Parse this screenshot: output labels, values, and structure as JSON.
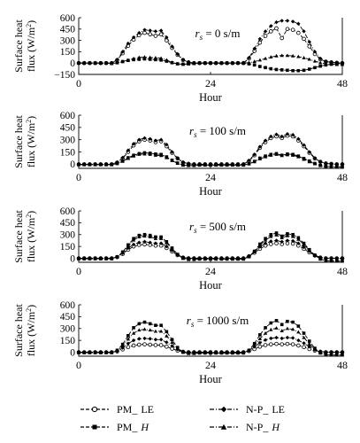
{
  "chart_data": [
    {
      "type": "line",
      "annotation_prefix": "r",
      "annotation_sub": "s",
      "annotation_value": " = 0 s/m",
      "ylabel_line1": "Surface heat",
      "ylabel_line2": "flux (W/m",
      "ylabel_sup": "2",
      "ylabel_end": ")",
      "xlabel": "Hour",
      "xlim": [
        0,
        48
      ],
      "xticks": [
        0,
        24,
        48
      ],
      "ylim": [
        -150,
        600
      ],
      "yticks": [
        -150,
        0,
        150,
        300,
        450,
        600
      ],
      "x": [
        0,
        1,
        2,
        3,
        4,
        5,
        6,
        7,
        8,
        9,
        10,
        11,
        12,
        13,
        14,
        15,
        16,
        17,
        18,
        19,
        20,
        21,
        22,
        23,
        24,
        25,
        26,
        27,
        28,
        29,
        30,
        31,
        32,
        33,
        34,
        35,
        36,
        37,
        38,
        39,
        40,
        41,
        42,
        43,
        44,
        45,
        46,
        47,
        48
      ],
      "series": [
        {
          "name": "PM_LE",
          "values": [
            0,
            0,
            0,
            0,
            0,
            0,
            0,
            40,
            130,
            230,
            310,
            370,
            400,
            380,
            360,
            380,
            300,
            200,
            110,
            40,
            10,
            0,
            0,
            0,
            0,
            0,
            0,
            0,
            0,
            0,
            0,
            60,
            160,
            270,
            360,
            420,
            460,
            330,
            450,
            440,
            400,
            320,
            220,
            120,
            50,
            20,
            10,
            5,
            0
          ]
        },
        {
          "name": "PM_H",
          "values": [
            0,
            0,
            0,
            0,
            0,
            0,
            -5,
            5,
            20,
            35,
            45,
            50,
            55,
            50,
            45,
            40,
            25,
            5,
            -10,
            -15,
            -10,
            -5,
            0,
            0,
            0,
            0,
            0,
            0,
            0,
            0,
            0,
            -10,
            -25,
            -45,
            -60,
            -75,
            -85,
            -90,
            -95,
            -100,
            -100,
            -95,
            -80,
            -60,
            -40,
            -25,
            -15,
            -10,
            -5
          ]
        },
        {
          "name": "N-P_LE",
          "values": [
            0,
            0,
            0,
            0,
            0,
            0,
            0,
            45,
            150,
            260,
            340,
            400,
            440,
            430,
            420,
            430,
            340,
            220,
            120,
            45,
            10,
            0,
            0,
            0,
            0,
            0,
            0,
            0,
            0,
            0,
            0,
            70,
            190,
            320,
            420,
            490,
            540,
            560,
            560,
            550,
            520,
            420,
            280,
            150,
            60,
            20,
            10,
            5,
            0
          ]
        },
        {
          "name": "N-P_H",
          "values": [
            0,
            0,
            0,
            0,
            0,
            0,
            -5,
            5,
            20,
            40,
            60,
            75,
            80,
            75,
            70,
            65,
            40,
            10,
            -10,
            -15,
            -10,
            -5,
            0,
            0,
            0,
            0,
            0,
            0,
            0,
            0,
            0,
            5,
            20,
            40,
            60,
            80,
            95,
            100,
            100,
            95,
            85,
            70,
            50,
            25,
            5,
            -10,
            -15,
            -20,
            -20
          ]
        }
      ]
    },
    {
      "type": "line",
      "annotation_prefix": "r",
      "annotation_sub": "s",
      "annotation_value": " = 100 s/m",
      "ylabel_line1": "Surface heat",
      "ylabel_line2": "flux (W/m",
      "ylabel_sup": "2",
      "ylabel_end": ")",
      "xlabel": "Hour",
      "xlim": [
        0,
        48
      ],
      "xticks": [
        0,
        24,
        48
      ],
      "ylim": [
        -50,
        600
      ],
      "yticks": [
        0,
        150,
        300,
        450,
        600
      ],
      "x": [
        0,
        1,
        2,
        3,
        4,
        5,
        6,
        7,
        8,
        9,
        10,
        11,
        12,
        13,
        14,
        15,
        16,
        17,
        18,
        19,
        20,
        21,
        22,
        23,
        24,
        25,
        26,
        27,
        28,
        29,
        30,
        31,
        32,
        33,
        34,
        35,
        36,
        37,
        38,
        39,
        40,
        41,
        42,
        43,
        44,
        45,
        46,
        47,
        48
      ],
      "series": [
        {
          "name": "PM_LE",
          "values": [
            0,
            0,
            0,
            0,
            0,
            0,
            0,
            20,
            70,
            150,
            230,
            280,
            300,
            290,
            270,
            280,
            220,
            140,
            70,
            20,
            5,
            0,
            0,
            0,
            0,
            0,
            0,
            0,
            0,
            0,
            0,
            40,
            110,
            200,
            270,
            320,
            340,
            320,
            350,
            340,
            290,
            220,
            140,
            70,
            30,
            10,
            5,
            0,
            0
          ]
        },
        {
          "name": "PM_H",
          "values": [
            -5,
            -5,
            -5,
            -5,
            -5,
            -5,
            -5,
            10,
            40,
            80,
            110,
            130,
            140,
            135,
            125,
            120,
            90,
            50,
            15,
            -10,
            -15,
            -15,
            -10,
            -10,
            -10,
            -10,
            -10,
            -10,
            -10,
            -10,
            -10,
            5,
            35,
            75,
            100,
            120,
            130,
            110,
            125,
            120,
            100,
            70,
            40,
            10,
            -15,
            -25,
            -30,
            -35,
            -35
          ]
        },
        {
          "name": "N-P_LE",
          "values": [
            0,
            0,
            0,
            0,
            0,
            0,
            0,
            25,
            80,
            170,
            250,
            300,
            320,
            310,
            290,
            300,
            240,
            150,
            75,
            25,
            5,
            0,
            0,
            0,
            0,
            0,
            0,
            0,
            0,
            0,
            0,
            45,
            120,
            215,
            290,
            340,
            365,
            340,
            370,
            360,
            310,
            235,
            150,
            75,
            30,
            10,
            5,
            0,
            0
          ]
        },
        {
          "name": "N-P_H",
          "values": [
            -5,
            -5,
            -5,
            -5,
            -5,
            -5,
            -5,
            8,
            35,
            70,
            100,
            120,
            125,
            120,
            110,
            105,
            80,
            45,
            10,
            -10,
            -15,
            -15,
            -10,
            -10,
            -10,
            -10,
            -10,
            -10,
            -10,
            -10,
            -10,
            5,
            30,
            65,
            90,
            110,
            120,
            105,
            115,
            110,
            90,
            60,
            30,
            5,
            -15,
            -25,
            -30,
            -30,
            -30
          ]
        }
      ]
    },
    {
      "type": "line",
      "annotation_prefix": "r",
      "annotation_sub": "s",
      "annotation_value": " = 500 s/m",
      "ylabel_line1": "Surface heat",
      "ylabel_line2": "flux (W/m",
      "ylabel_sup": "2",
      "ylabel_end": ")",
      "xlabel": "Hour",
      "xlim": [
        0,
        48
      ],
      "xticks": [
        0,
        24,
        48
      ],
      "ylim": [
        -50,
        600
      ],
      "yticks": [
        0,
        150,
        300,
        450,
        600
      ],
      "x": [
        0,
        1,
        2,
        3,
        4,
        5,
        6,
        7,
        8,
        9,
        10,
        11,
        12,
        13,
        14,
        15,
        16,
        17,
        18,
        19,
        20,
        21,
        22,
        23,
        24,
        25,
        26,
        27,
        28,
        29,
        30,
        31,
        32,
        33,
        34,
        35,
        36,
        37,
        38,
        39,
        40,
        41,
        42,
        43,
        44,
        45,
        46,
        47,
        48
      ],
      "series": [
        {
          "name": "PM_LE",
          "values": [
            0,
            0,
            0,
            0,
            0,
            0,
            0,
            15,
            55,
            110,
            150,
            170,
            175,
            170,
            160,
            160,
            130,
            85,
            40,
            10,
            0,
            0,
            0,
            0,
            0,
            0,
            0,
            0,
            0,
            0,
            0,
            25,
            70,
            120,
            160,
            180,
            190,
            180,
            190,
            185,
            160,
            120,
            75,
            35,
            10,
            0,
            0,
            0,
            0
          ]
        },
        {
          "name": "PM_H",
          "values": [
            -5,
            -5,
            -5,
            -5,
            -5,
            -5,
            -5,
            20,
            80,
            170,
            250,
            290,
            300,
            290,
            270,
            270,
            210,
            130,
            50,
            0,
            -15,
            -15,
            -10,
            -10,
            -10,
            -10,
            -10,
            -10,
            -10,
            -10,
            -10,
            20,
            90,
            180,
            250,
            300,
            320,
            280,
            310,
            300,
            260,
            190,
            110,
            40,
            -10,
            -30,
            -35,
            -35,
            -35
          ]
        },
        {
          "name": "N-P_LE",
          "values": [
            0,
            0,
            0,
            0,
            0,
            0,
            0,
            18,
            65,
            130,
            175,
            200,
            210,
            200,
            190,
            190,
            150,
            100,
            45,
            10,
            0,
            0,
            0,
            0,
            0,
            0,
            0,
            0,
            0,
            0,
            0,
            30,
            85,
            145,
            190,
            215,
            225,
            210,
            225,
            220,
            190,
            140,
            90,
            40,
            10,
            0,
            0,
            0,
            0
          ]
        },
        {
          "name": "N-P_H",
          "values": [
            -5,
            -5,
            -5,
            -5,
            -5,
            -5,
            -5,
            18,
            75,
            155,
            230,
            270,
            280,
            270,
            250,
            250,
            195,
            120,
            45,
            0,
            -15,
            -15,
            -10,
            -10,
            -10,
            -10,
            -10,
            -10,
            -10,
            -10,
            -10,
            18,
            80,
            165,
            230,
            275,
            295,
            260,
            285,
            275,
            240,
            175,
            100,
            35,
            -10,
            -30,
            -35,
            -35,
            -35
          ]
        }
      ]
    },
    {
      "type": "line",
      "annotation_prefix": "r",
      "annotation_sub": "s",
      "annotation_value": " = 1000 s/m",
      "ylabel_line1": "Surface heat",
      "ylabel_line2": "flux (W/m",
      "ylabel_sup": "2",
      "ylabel_end": ")",
      "xlabel": "Hour",
      "xlim": [
        0,
        48
      ],
      "xticks": [
        0,
        24,
        48
      ],
      "ylim": [
        -50,
        600
      ],
      "yticks": [
        0,
        150,
        300,
        450,
        600
      ],
      "x": [
        0,
        1,
        2,
        3,
        4,
        5,
        6,
        7,
        8,
        9,
        10,
        11,
        12,
        13,
        14,
        15,
        16,
        17,
        18,
        19,
        20,
        21,
        22,
        23,
        24,
        25,
        26,
        27,
        28,
        29,
        30,
        31,
        32,
        33,
        34,
        35,
        36,
        37,
        38,
        39,
        40,
        41,
        42,
        43,
        44,
        45,
        46,
        47,
        48
      ],
      "series": [
        {
          "name": "PM_LE",
          "values": [
            0,
            0,
            0,
            0,
            0,
            0,
            0,
            10,
            35,
            65,
            85,
            95,
            100,
            95,
            90,
            90,
            70,
            45,
            20,
            5,
            0,
            0,
            0,
            0,
            0,
            0,
            0,
            0,
            0,
            0,
            0,
            15,
            40,
            70,
            90,
            100,
            105,
            100,
            105,
            100,
            85,
            65,
            40,
            20,
            5,
            0,
            0,
            0,
            0
          ]
        },
        {
          "name": "PM_H",
          "values": [
            -5,
            -5,
            -5,
            -5,
            -5,
            -5,
            -5,
            25,
            100,
            210,
            310,
            360,
            380,
            360,
            340,
            340,
            260,
            160,
            60,
            0,
            -15,
            -15,
            -10,
            -10,
            -10,
            -10,
            -10,
            -10,
            -10,
            -10,
            -10,
            25,
            110,
            220,
            310,
            370,
            400,
            350,
            390,
            380,
            330,
            240,
            140,
            50,
            -10,
            -30,
            -35,
            -35,
            -35
          ]
        },
        {
          "name": "N-P_LE",
          "values": [
            0,
            0,
            0,
            0,
            0,
            0,
            0,
            15,
            55,
            110,
            150,
            170,
            175,
            170,
            160,
            160,
            125,
            80,
            35,
            10,
            0,
            0,
            0,
            0,
            0,
            0,
            0,
            0,
            0,
            0,
            0,
            25,
            70,
            120,
            155,
            175,
            185,
            175,
            185,
            180,
            150,
            115,
            70,
            30,
            10,
            0,
            0,
            0,
            0
          ]
        },
        {
          "name": "N-P_H",
          "values": [
            -5,
            -5,
            -5,
            -5,
            -5,
            -5,
            -5,
            20,
            80,
            165,
            240,
            280,
            290,
            280,
            265,
            265,
            205,
            125,
            45,
            0,
            -15,
            -15,
            -10,
            -10,
            -10,
            -10,
            -10,
            -10,
            -10,
            -10,
            -10,
            20,
            85,
            170,
            240,
            285,
            305,
            270,
            300,
            290,
            255,
            185,
            105,
            35,
            -10,
            -30,
            -35,
            -35,
            -35
          ]
        }
      ]
    }
  ],
  "legend": [
    {
      "id": "pm-le",
      "prefix": "PM_",
      "suffix": "LE",
      "italic": false,
      "line": "dash",
      "marker": "circle-open"
    },
    {
      "id": "pm-h",
      "prefix": "PM_",
      "suffix": "H",
      "italic": true,
      "line": "dash",
      "marker": "square-filled"
    },
    {
      "id": "np-le",
      "prefix": "N-P_",
      "suffix": "LE",
      "italic": false,
      "line": "dashdot",
      "marker": "diamond-filled"
    },
    {
      "id": "np-h",
      "prefix": "N-P_",
      "suffix": "H",
      "italic": true,
      "line": "dashdot",
      "marker": "triangle-filled"
    }
  ]
}
